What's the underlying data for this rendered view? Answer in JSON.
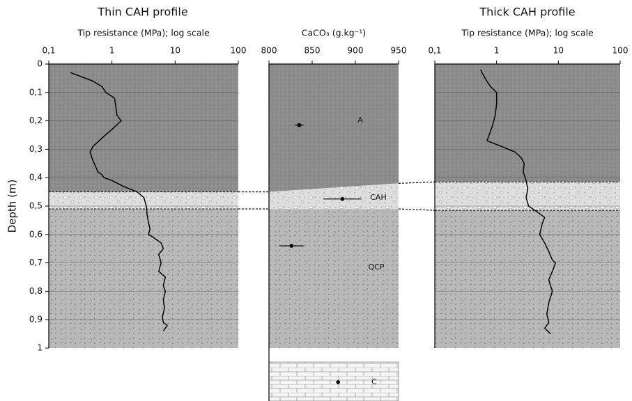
{
  "chart_data": [
    {
      "type": "line",
      "title": "Thin CAH profile",
      "x_label": "Tip resistance (MPa); log scale",
      "y_label": "Depth (m)",
      "xscale": "log",
      "xlim": [
        0.1,
        100
      ],
      "xticks": [
        {
          "value": 0.1,
          "label": "0,1"
        },
        1,
        10,
        100
      ],
      "ylim": [
        0,
        1
      ],
      "yticks": [
        0,
        {
          "value": 0.1,
          "label": "0,1"
        },
        {
          "value": 0.2,
          "label": "0,2"
        },
        {
          "value": 0.3,
          "label": "0,3"
        },
        {
          "value": 0.4,
          "label": "0,4"
        },
        {
          "value": 0.5,
          "label": "0,5"
        },
        {
          "value": 0.6,
          "label": "0,6"
        },
        {
          "value": 0.7,
          "label": "0,7"
        },
        {
          "value": 0.8,
          "label": "0,8"
        },
        {
          "value": 0.9,
          "label": "0,9"
        },
        1
      ],
      "grid": true,
      "color": "#000000",
      "layer_depths": [
        0.45,
        0.51
      ],
      "resistance": [
        0.22,
        0.5,
        0.7,
        0.8,
        1.1,
        1.15,
        1.2,
        1.4,
        1.0,
        0.7,
        0.5,
        0.45,
        0.5,
        0.6,
        0.7,
        0.75,
        1.0,
        1.5,
        2.5,
        3.2,
        3.5,
        3.6,
        3.8,
        4.0,
        3.8,
        4.5,
        6.0,
        6.5,
        5.5,
        6.0,
        5.5,
        7.0,
        6.5,
        7.0,
        6.5,
        6.8,
        6.3,
        6.5,
        7.5,
        6.5
      ],
      "depth": [
        0.03,
        0.06,
        0.08,
        0.1,
        0.12,
        0.15,
        0.18,
        0.2,
        0.23,
        0.26,
        0.29,
        0.31,
        0.34,
        0.38,
        0.39,
        0.4,
        0.41,
        0.43,
        0.45,
        0.47,
        0.5,
        0.53,
        0.56,
        0.58,
        0.6,
        0.61,
        0.63,
        0.65,
        0.67,
        0.7,
        0.73,
        0.75,
        0.78,
        0.8,
        0.83,
        0.86,
        0.89,
        0.91,
        0.92,
        0.94
      ]
    },
    {
      "type": "scatter",
      "x_label": "CaCO₃ (g.kg⁻¹)",
      "xscale": "linear",
      "xlim": [
        800,
        950
      ],
      "xticks": [
        800,
        850,
        900,
        950
      ],
      "ylim": [
        0,
        1
      ],
      "color": "#000000",
      "layer_depths": [
        [
          0.45,
          0.42
        ],
        [
          0.51,
          0.51
        ]
      ],
      "layer_labels": [
        "A",
        "CAH",
        "QCP",
        "C"
      ],
      "caco3": [
        835,
        885,
        826,
        880
      ],
      "caco3_err": [
        5,
        22,
        14,
        null
      ],
      "depth": [
        0.215,
        0.475,
        0.64,
        1.12
      ]
    },
    {
      "type": "line",
      "title": "Thick CAH profile",
      "x_label": "Tip resistance (MPa); log scale",
      "xscale": "log",
      "xlim": [
        0.1,
        100
      ],
      "xticks": [
        {
          "value": 0.1,
          "label": "0,1"
        },
        1,
        10,
        100
      ],
      "ylim": [
        0,
        1
      ],
      "grid": true,
      "color": "#000000",
      "layer_depths": [
        0.415,
        0.515
      ],
      "resistance": [
        0.55,
        0.65,
        0.8,
        1.0,
        1.0,
        0.95,
        0.85,
        0.7,
        1.2,
        2.0,
        2.5,
        2.8,
        2.7,
        3.0,
        3.2,
        3.0,
        3.3,
        4.5,
        6.0,
        5.5,
        5.0,
        6.0,
        7.0,
        8.0,
        9.0,
        8.0,
        7.0,
        8.0,
        7.0,
        6.5,
        7.0,
        6.0,
        7.5
      ],
      "depth": [
        0.02,
        0.05,
        0.08,
        0.1,
        0.14,
        0.18,
        0.22,
        0.27,
        0.29,
        0.31,
        0.33,
        0.35,
        0.38,
        0.41,
        0.44,
        0.47,
        0.5,
        0.52,
        0.54,
        0.56,
        0.6,
        0.63,
        0.66,
        0.69,
        0.7,
        0.73,
        0.76,
        0.8,
        0.84,
        0.88,
        0.91,
        0.93,
        0.95
      ]
    }
  ]
}
